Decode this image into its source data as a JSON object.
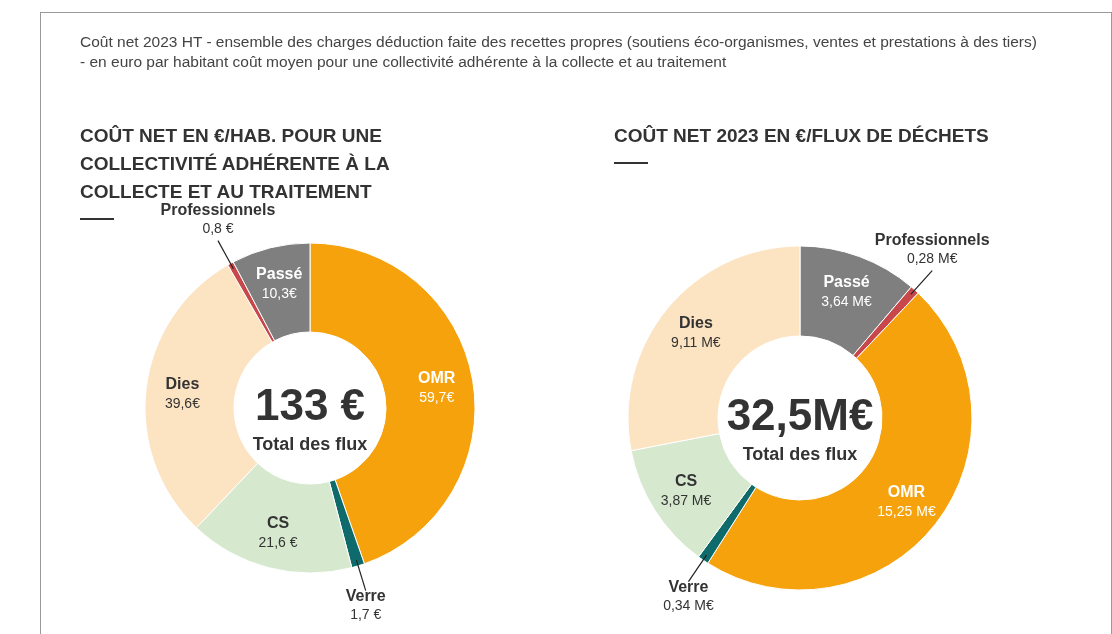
{
  "chart_data": [
    {
      "type": "donut",
      "title": "COÛT NET EN €/HAB. POUR UNE COLLECTIVITÉ ADHÉRENTE  À LA COLLECTE ET AU TRAITEMENT",
      "categories": [
        "OMR",
        "Verre",
        "CS",
        "Dies",
        "Professionnels",
        "Passé"
      ],
      "values": [
        59.7,
        1.7,
        21.6,
        39.6,
        0.8,
        10.3
      ],
      "value_labels": [
        "59,7€",
        "1,7 €",
        "21,6 €",
        "39,6€",
        "0,8 €",
        "10,3€"
      ],
      "colors": [
        "#f5a20d",
        "#0f6b6b",
        "#d6e9cf",
        "#fce4c2",
        "#c8474a",
        "#7f7f7f"
      ],
      "annotations": [
        "Coût net 2023 HT - ensemble des charges déduction faite des recettes propres (soutiens éco-organismes, ventes et prestations à des tiers) - en euro par habitant coût moyen pour une collectivité adhérente à la collecte et au traitement",
        "133 €",
        "Total des flux"
      ],
      "legend": false
    },
    {
      "type": "donut",
      "title": "COÛT NET 2023 EN €/FLUX DE DÉCHETS",
      "categories": [
        "Passé",
        "Professionnels",
        "OMR",
        "Verre",
        "CS",
        "Dies"
      ],
      "values": [
        3.64,
        0.28,
        15.25,
        0.34,
        3.87,
        9.11
      ],
      "value_labels": [
        "3,64 M€",
        "0,28 M€",
        "15,25 M€",
        "0,34 M€",
        "3,87 M€",
        "9,11 M€"
      ],
      "colors": [
        "#7f7f7f",
        "#c8474a",
        "#f5a20d",
        "#0f6b6b",
        "#d6e9cf",
        "#fce4c2"
      ],
      "annotations": [
        "32,5M€",
        "Total des flux"
      ],
      "legend": false
    }
  ]
}
